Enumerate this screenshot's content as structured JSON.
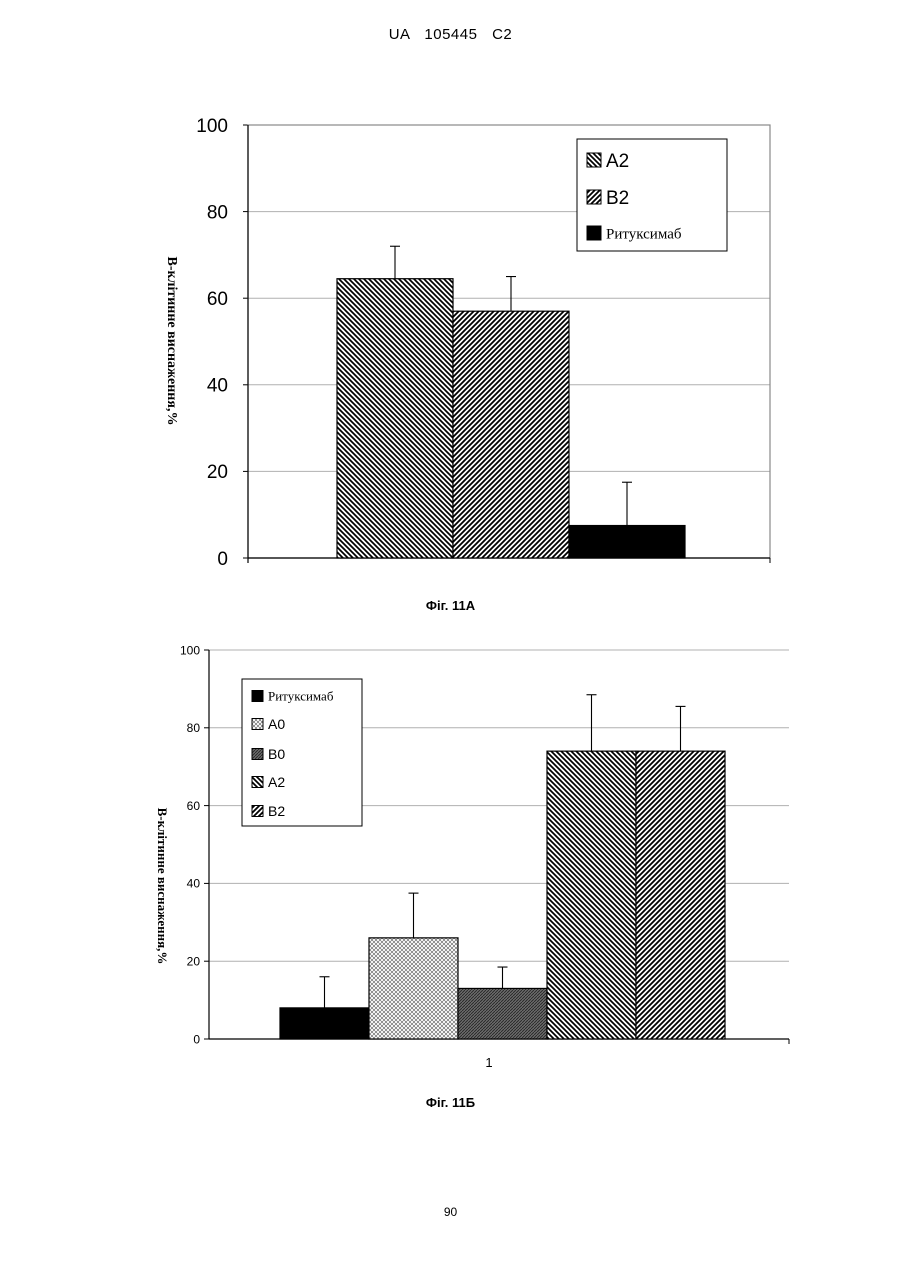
{
  "header": {
    "patent_id": "UA 105445 C2"
  },
  "page_number": "90",
  "charts": {
    "fig11a_caption": "Фіг. 11А",
    "fig11b_caption": "Фіг. 11Б"
  },
  "colors": {
    "solid": "#000000",
    "light": "#ffffff",
    "grid": "#b0b0b0"
  },
  "chart_data": [
    {
      "type": "bar",
      "categories": [
        ""
      ],
      "series": [
        {
          "name": "A2",
          "values": [
            64.5
          ],
          "error": [
            7.5
          ],
          "pattern": "hatch-back"
        },
        {
          "name": "B2",
          "values": [
            57
          ],
          "error": [
            8
          ],
          "pattern": "hatch-fwd"
        },
        {
          "name": "Ритуксимаб",
          "values": [
            7.5
          ],
          "error": [
            10
          ],
          "pattern": "solid"
        }
      ],
      "ylabel": "В-клітинне виснаження,%",
      "ylim": [
        0,
        100
      ],
      "yticks": [
        "0",
        "20",
        "40",
        "60",
        "80",
        "100"
      ],
      "grid": true,
      "legend": "top-right"
    },
    {
      "type": "bar",
      "categories": [
        "1"
      ],
      "series": [
        {
          "name": "Ритуксимаб",
          "values": [
            8
          ],
          "error": [
            8
          ],
          "pattern": "solid"
        },
        {
          "name": "A0",
          "values": [
            26
          ],
          "error": [
            11.5
          ],
          "pattern": "dots"
        },
        {
          "name": "B0",
          "values": [
            13
          ],
          "error": [
            5.5
          ],
          "pattern": "dense"
        },
        {
          "name": "A2",
          "values": [
            74
          ],
          "error": [
            14.5
          ],
          "pattern": "hatch-back"
        },
        {
          "name": "B2",
          "values": [
            74
          ],
          "error": [
            11.5
          ],
          "pattern": "hatch-fwd"
        }
      ],
      "ylabel": "В-клітинне виснаження,%",
      "ylim": [
        0,
        100
      ],
      "yticks": [
        "0",
        "20",
        "40",
        "60",
        "80",
        "100"
      ],
      "grid": true,
      "legend": "top-left"
    }
  ]
}
